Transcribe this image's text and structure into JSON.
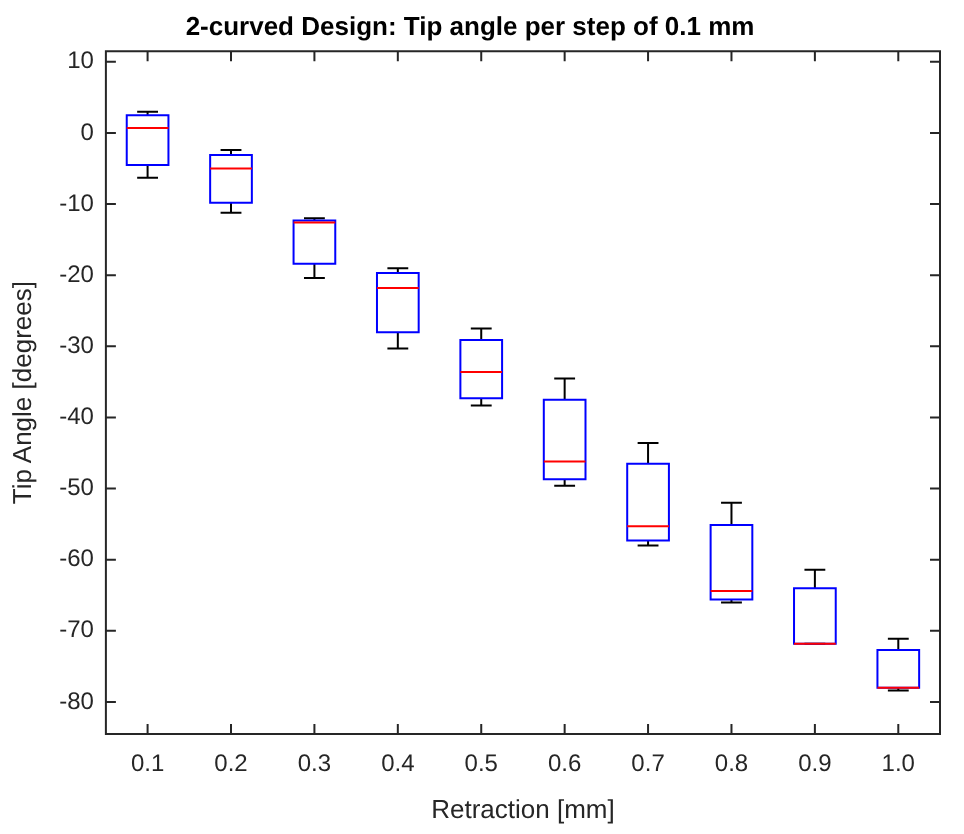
{
  "chart_data": {
    "type": "box",
    "title": "2-curved Design: Tip angle per step of 0.1 mm",
    "xlabel": "Retraction [mm]",
    "ylabel": "Tip Angle [degrees]",
    "categories": [
      "0.1",
      "0.2",
      "0.3",
      "0.4",
      "0.5",
      "0.6",
      "0.7",
      "0.8",
      "0.9",
      "1.0"
    ],
    "ylim": [
      -84.5,
      11.5
    ],
    "yticks": [
      -80,
      -70,
      -60,
      -50,
      -40,
      -30,
      -20,
      -10,
      0,
      10
    ],
    "grid": false,
    "legend": false,
    "series": [
      {
        "color": "#0000ff",
        "boxes": [
          {
            "low": -6.3,
            "q1": -4.5,
            "median": 0.7,
            "q3": 2.5,
            "high": 3
          },
          {
            "low": -11.2,
            "q1": -9.8,
            "median": -5,
            "q3": -3.1,
            "high": -2.4
          },
          {
            "low": -20.4,
            "q1": -18.4,
            "median": -12.6,
            "q3": -12.3,
            "high": -12
          },
          {
            "low": -30.3,
            "q1": -28,
            "median": -21.8,
            "q3": -19.7,
            "high": -19
          },
          {
            "low": -38.3,
            "q1": -37.3,
            "median": -33.6,
            "q3": -29.1,
            "high": -27.5
          },
          {
            "low": -49.6,
            "q1": -48.7,
            "median": -46.2,
            "q3": -37.5,
            "high": -34.5
          },
          {
            "low": -58,
            "q1": -57.3,
            "median": -55.3,
            "q3": -46.5,
            "high": -43.6
          },
          {
            "low": -66,
            "q1": -65.6,
            "median": -64.4,
            "q3": -55.1,
            "high": -52
          },
          {
            "low": -71.8,
            "q1": -71.8,
            "median": -71.8,
            "q3": -64,
            "high": -61.4
          },
          {
            "low": -78.4,
            "q1": -78,
            "median": -78,
            "q3": -72.7,
            "high": -71.1
          }
        ]
      }
    ]
  }
}
